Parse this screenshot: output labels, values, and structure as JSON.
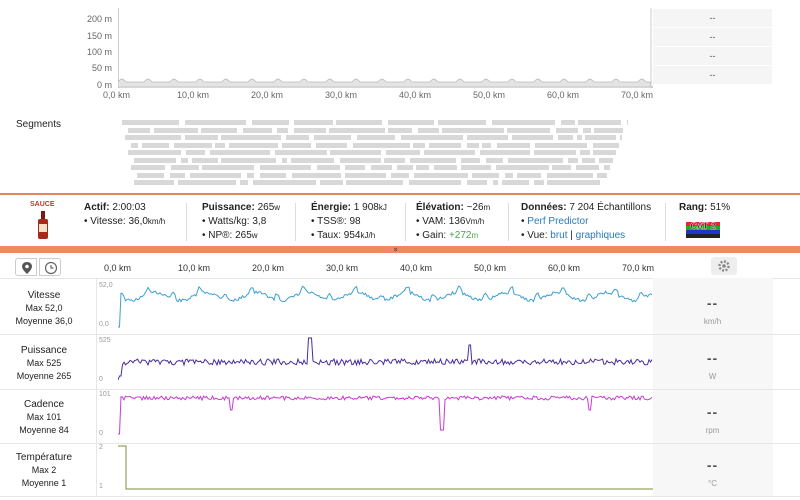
{
  "elevation_chart": {
    "y_ticks": [
      "200 m",
      "150 m",
      "100 m",
      "50 m",
      "0 m"
    ],
    "x_ticks": [
      "0,0 km",
      "10,0 km",
      "20,0 km",
      "30,0 km",
      "40,0 km",
      "50,0 km",
      "60,0 km",
      "70,0 km"
    ],
    "side_values": [
      "--",
      "--",
      "--",
      "--"
    ]
  },
  "segments": {
    "label": "Segments"
  },
  "stats": {
    "brand": "SAUCE",
    "active_label": "Actif:",
    "active_value": "2:00:03",
    "speed_label": "Vitesse:",
    "speed_value": "36,0",
    "speed_unit": "km/h",
    "power_label": "Puissance:",
    "power_value": "265",
    "power_unit": "w",
    "wkg_label": "Watts/kg:",
    "wkg_value": "3,8",
    "np_label": "NP®:",
    "np_value": "265",
    "np_unit": "w",
    "energy_label": "Énergie:",
    "energy_value": "1 908",
    "energy_unit": "kJ",
    "tss_label": "TSS®:",
    "tss_value": "98",
    "rate_label": "Taux:",
    "rate_value": "954",
    "rate_unit": "kJ/h",
    "elev_label": "Élévation:",
    "elev_value": "~26",
    "elev_unit": "m",
    "vam_label": "VAM:",
    "vam_value": "136",
    "vam_unit": "Vm/h",
    "gain_label": "Gain:",
    "gain_value": "+272",
    "gain_unit": "m",
    "data_label": "Données:",
    "data_value": "7 204 Échantillons",
    "perf_link": "Perf Predictor",
    "view_label": "Vue:",
    "view_raw": "brut",
    "view_sep": "|",
    "view_graphs": "graphiques",
    "rank_label": "Rang:",
    "rank_value": "51%",
    "cat_badge": "CAT 2"
  },
  "toolbar": {
    "chevron": "»"
  },
  "streams": {
    "x_ticks": [
      "0,0 km",
      "10,0 km",
      "20,0 km",
      "30,0 km",
      "40,0 km",
      "50,0 km",
      "60,0 km",
      "70,0 km"
    ],
    "rows": [
      {
        "title": "Vitesse",
        "max": "Max 52,0",
        "avg": "Moyenne 36,0",
        "ymax": "52,0",
        "ymin": "0,0",
        "value": "--",
        "unit": "km/h",
        "color": "#3d9fd1"
      },
      {
        "title": "Puissance",
        "max": "Max 525",
        "avg": "Moyenne 265",
        "ymax": "525",
        "ymin": "0",
        "value": "--",
        "unit": "W",
        "color": "#4a2d9a"
      },
      {
        "title": "Cadence",
        "max": "Max 101",
        "avg": "Moyenne 84",
        "ymax": "101",
        "ymin": "0",
        "value": "--",
        "unit": "rpm",
        "color": "#c83bd1"
      },
      {
        "title": "Température",
        "max": "Max 2",
        "avg": "Moyenne 1",
        "ymax": "2",
        "ymin": "1",
        "value": "--",
        "unit": "°C",
        "color": "#7a8f3a"
      }
    ]
  }
}
